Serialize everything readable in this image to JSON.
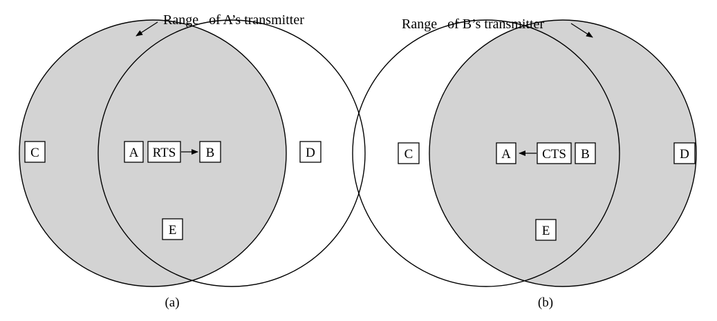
{
  "colors": {
    "shade": "#d3d3d3",
    "stroke": "#000000",
    "background": "#ffffff"
  },
  "panel_a": {
    "range_label": "Range   of A’s transmitter",
    "caption": "(a)",
    "nodes": {
      "c": "C",
      "a": "A",
      "rts": "RTS",
      "b": "B",
      "d": "D",
      "e": "E"
    }
  },
  "panel_b": {
    "range_label": "Range   of B’s transmitter",
    "caption": "(b)",
    "nodes": {
      "c": "C",
      "a": "A",
      "cts": "CTS",
      "b": "B",
      "d": "D",
      "e": "E"
    }
  }
}
